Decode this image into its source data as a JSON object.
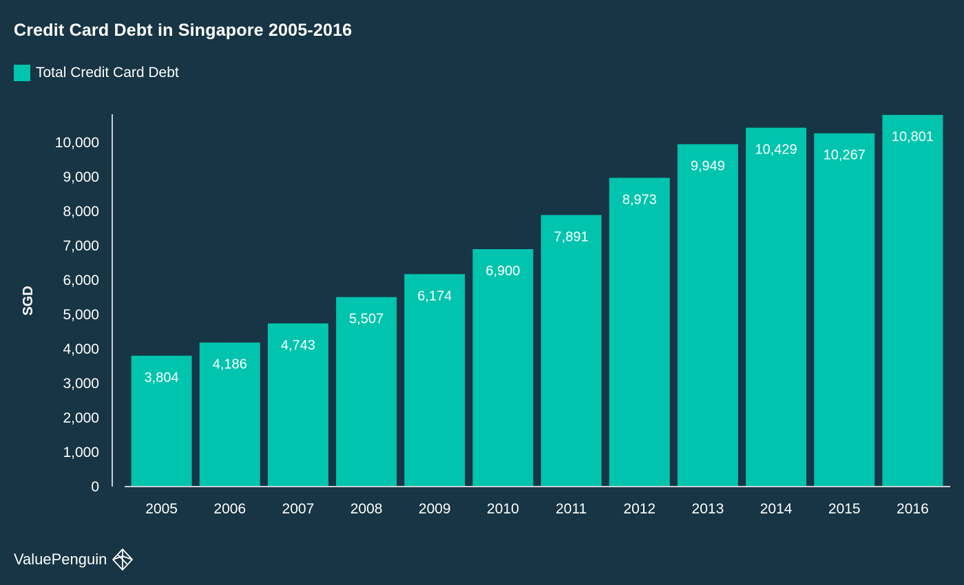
{
  "colors": {
    "background": "#173544",
    "bar": "#00c4ad",
    "text": "#ffffff",
    "axis": "#c9d1d6"
  },
  "brand": {
    "name": "ValuePenguin",
    "logo_icon": "penguin-diamond-icon"
  },
  "chart_data": {
    "type": "bar",
    "title": "Credit Card Debt in Singapore 2005-2016",
    "xlabel": "",
    "ylabel": "SGD",
    "legend": {
      "placement": "top-left",
      "entries": [
        "Total Credit Card Debt"
      ]
    },
    "grid": false,
    "categories": [
      "2005",
      "2006",
      "2007",
      "2008",
      "2009",
      "2010",
      "2011",
      "2012",
      "2013",
      "2014",
      "2015",
      "2016"
    ],
    "series": [
      {
        "name": "Total Credit Card Debt",
        "values": [
          3804,
          4186,
          4743,
          5507,
          6174,
          6900,
          7891,
          8973,
          9949,
          10429,
          10267,
          10801
        ],
        "labels": [
          "3,804",
          "4,186",
          "4,743",
          "5,507",
          "6,174",
          "6,900",
          "7,891",
          "8,973",
          "9,949",
          "10,429",
          "10,267",
          "10,801"
        ]
      }
    ],
    "ylim": [
      0,
      10801
    ],
    "yticks": [
      0,
      1000,
      2000,
      3000,
      4000,
      5000,
      6000,
      7000,
      8000,
      9000,
      10000
    ],
    "ytick_labels": [
      "0",
      "1,000",
      "2,000",
      "3,000",
      "4,000",
      "5,000",
      "6,000",
      "7,000",
      "8,000",
      "9,000",
      "10,000"
    ]
  }
}
